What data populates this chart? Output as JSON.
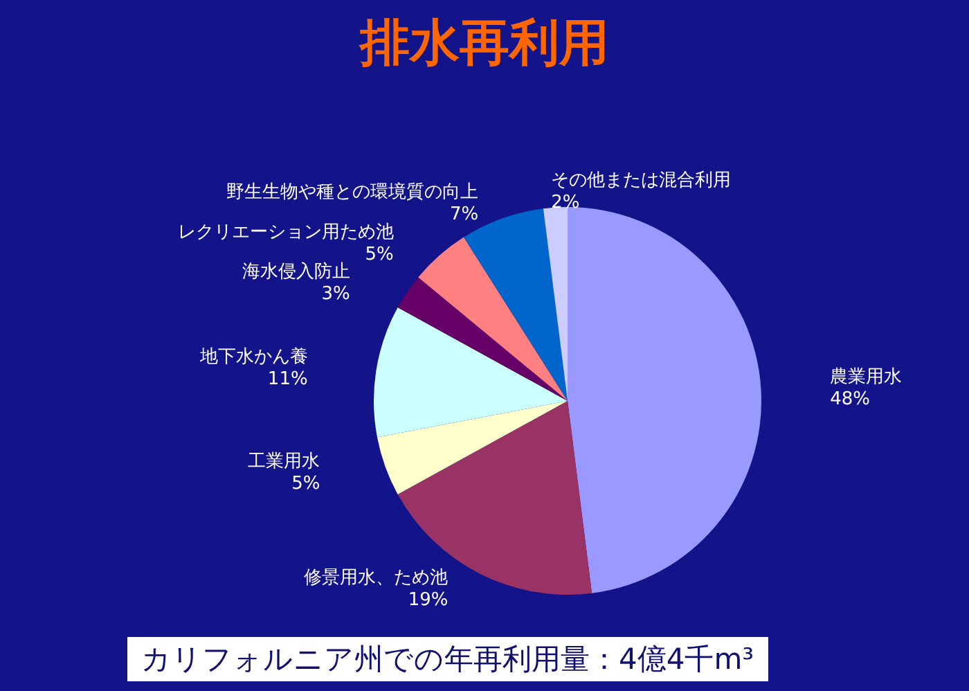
{
  "chart_data": {
    "type": "pie",
    "title": "排水再利用",
    "categories": [
      "農業用水",
      "修景用水、ため池",
      "工業用水",
      "地下水かん養",
      "海水侵入防止",
      "レクリエーション用ため池",
      "野生生物や種との環境質の向上",
      "その他または混合利用"
    ],
    "values": [
      48,
      19,
      5,
      11,
      3,
      5,
      7,
      2
    ],
    "colors": [
      "#9999ff",
      "#993366",
      "#ffffcc",
      "#ccffff",
      "#660066",
      "#ff8080",
      "#0066cc",
      "#ccccff"
    ],
    "value_labels": [
      "48%",
      "19%",
      "5%",
      "11%",
      "3%",
      "5%",
      "7%",
      "2%"
    ],
    "annotations": [
      "カリフォルニア州での年再利用量：4億4千m³"
    ]
  }
}
